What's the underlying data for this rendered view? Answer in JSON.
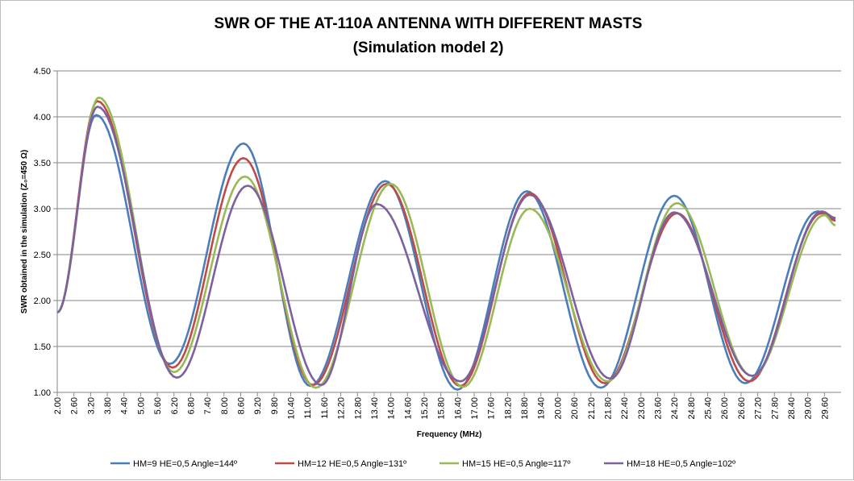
{
  "chart_data": {
    "type": "line",
    "title_lines": [
      "SWR OF THE AT-110A ANTENNA WITH DIFFERENT MASTS",
      "(Simulation model 2)"
    ],
    "xlabel": "Frequency (MHz)",
    "ylabel": "SWR obtained in the simulation (Z₀=450 Ω)",
    "ylim": [
      1.0,
      4.5
    ],
    "y_ticks": [
      "1.00",
      "1.50",
      "2.00",
      "2.50",
      "3.00",
      "3.50",
      "4.00",
      "4.50"
    ],
    "x_range": [
      2.0,
      30.2
    ],
    "x_tick_labels": [
      "2.00",
      "2.60",
      "3.20",
      "3.80",
      "4.40",
      "5.00",
      "5.60",
      "6.20",
      "6.80",
      "7.40",
      "8.00",
      "8.60",
      "9.20",
      "9.80",
      "10.40",
      "11.00",
      "11.60",
      "12.20",
      "12.80",
      "13.40",
      "14.00",
      "14.60",
      "15.20",
      "15.80",
      "16.40",
      "17.00",
      "17.60",
      "18.20",
      "18.80",
      "19.40",
      "20.00",
      "20.60",
      "21.20",
      "21.80",
      "22.40",
      "23.00",
      "23.60",
      "24.20",
      "24.80",
      "25.40",
      "26.00",
      "26.60",
      "27.20",
      "27.80",
      "28.40",
      "29.00",
      "29.60"
    ],
    "grid": "horizontal",
    "legend_position": "bottom",
    "series": [
      {
        "name": "HM=9 HE=0,5 Angle=144º",
        "color": "#4a7ebb",
        "points": [
          [
            2.0,
            1.87
          ],
          [
            3.4,
            4.02
          ],
          [
            6.05,
            1.31
          ],
          [
            8.7,
            3.71
          ],
          [
            11.1,
            1.07
          ],
          [
            13.8,
            3.3
          ],
          [
            16.4,
            1.03
          ],
          [
            18.9,
            3.19
          ],
          [
            21.55,
            1.05
          ],
          [
            24.2,
            3.14
          ],
          [
            26.75,
            1.1
          ],
          [
            29.35,
            2.97
          ],
          [
            30.0,
            2.89
          ]
        ]
      },
      {
        "name": "HM=12 HE=0,5 Angle=131º",
        "color": "#be4b48",
        "points": [
          [
            2.0,
            1.87
          ],
          [
            3.45,
            4.17
          ],
          [
            6.15,
            1.27
          ],
          [
            8.7,
            3.55
          ],
          [
            11.2,
            1.08
          ],
          [
            13.85,
            3.27
          ],
          [
            16.5,
            1.07
          ],
          [
            19.0,
            3.17
          ],
          [
            21.7,
            1.1
          ],
          [
            24.3,
            2.95
          ],
          [
            26.9,
            1.12
          ],
          [
            29.5,
            2.95
          ],
          [
            30.0,
            2.87
          ]
        ]
      },
      {
        "name": "HM=15 HE=0,5 Angle=117º",
        "color": "#98b954",
        "points": [
          [
            2.0,
            1.87
          ],
          [
            3.5,
            4.21
          ],
          [
            6.2,
            1.22
          ],
          [
            8.75,
            3.35
          ],
          [
            11.3,
            1.05
          ],
          [
            14.0,
            3.27
          ],
          [
            16.6,
            1.06
          ],
          [
            19.0,
            3.0
          ],
          [
            21.8,
            1.12
          ],
          [
            24.3,
            3.06
          ],
          [
            27.0,
            1.18
          ],
          [
            29.6,
            2.93
          ],
          [
            30.0,
            2.82
          ]
        ]
      },
      {
        "name": "HM=18 HE=0,5 Angle=102º",
        "color": "#7d60a0",
        "points": [
          [
            2.0,
            1.87
          ],
          [
            3.45,
            4.11
          ],
          [
            6.3,
            1.16
          ],
          [
            8.85,
            3.25
          ],
          [
            11.5,
            1.08
          ],
          [
            13.5,
            3.05
          ],
          [
            16.5,
            1.12
          ],
          [
            19.0,
            3.15
          ],
          [
            21.9,
            1.15
          ],
          [
            24.2,
            2.96
          ],
          [
            27.0,
            1.18
          ],
          [
            29.5,
            2.97
          ],
          [
            30.0,
            2.9
          ]
        ]
      }
    ]
  }
}
